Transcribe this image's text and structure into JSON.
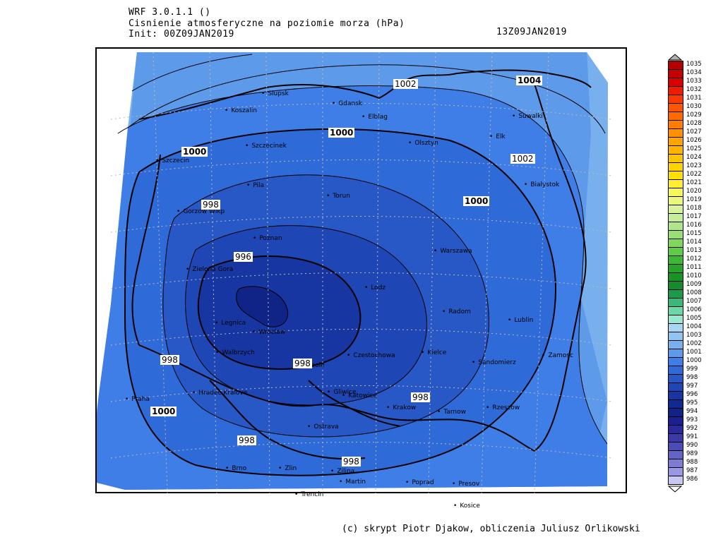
{
  "header": {
    "model": "WRF 3.0.1.1 ()",
    "field": "Cisnienie atmosferyczne na poziomie morza (hPa)",
    "init": "Init: 00Z09JAN2019",
    "valid": "13Z09JAN2019"
  },
  "footer": "(c) skrypt Piotr Djakow, obliczenia Juliusz Orlikowski",
  "legend": {
    "levels": [
      "1035",
      "1034",
      "1033",
      "1032",
      "1031",
      "1030",
      "1029",
      "1028",
      "1027",
      "1026",
      "1025",
      "1024",
      "1023",
      "1022",
      "1021",
      "1020",
      "1019",
      "1018",
      "1017",
      "1016",
      "1015",
      "1014",
      "1013",
      "1012",
      "1011",
      "1010",
      "1009",
      "1008",
      "1007",
      "1006",
      "1005",
      "1004",
      "1003",
      "1002",
      "1001",
      "1000",
      "999",
      "998",
      "997",
      "996",
      "995",
      "994",
      "993",
      "992",
      "991",
      "990",
      "989",
      "988",
      "987",
      "986"
    ],
    "colors": [
      "#b30000",
      "#c40000",
      "#d90000",
      "#ee1c00",
      "#f83a00",
      "#ff5500",
      "#ff6a00",
      "#ff7d00",
      "#ff9100",
      "#ffa400",
      "#ffb400",
      "#ffc400",
      "#ffd300",
      "#ffe000",
      "#ffee30",
      "#f6f85a",
      "#eaf77a",
      "#d9f39a",
      "#c6ed9a",
      "#b0e68a",
      "#98df74",
      "#7fd75c",
      "#60cc46",
      "#3db832",
      "#26a428",
      "#179424",
      "#178a30",
      "#1a9a4a",
      "#3ab87a",
      "#6cd8a8",
      "#9ae8d0",
      "#a6d6f4",
      "#90c4f2",
      "#78b0ee",
      "#5e9aea",
      "#3f7ee6",
      "#2e6ad8",
      "#2758c6",
      "#1e46b4",
      "#1736a2",
      "#0f2a92",
      "#102488",
      "#1c1f90",
      "#2a2a9c",
      "#3a3aa8",
      "#4c4cb6",
      "#6464c6",
      "#7c7cd6",
      "#9898e4",
      "#c8c8f2"
    ]
  },
  "cities": [
    {
      "name": "Slupsk"
    },
    {
      "name": "Gdansk"
    },
    {
      "name": "Koszalin"
    },
    {
      "name": "Elblag"
    },
    {
      "name": "Suwalki"
    },
    {
      "name": "Szczecinek"
    },
    {
      "name": "Olsztyn"
    },
    {
      "name": "Elk"
    },
    {
      "name": "Szczecin"
    },
    {
      "name": "Bialystok"
    },
    {
      "name": "Pila"
    },
    {
      "name": "Torun"
    },
    {
      "name": "Gorzow Wlkp"
    },
    {
      "name": "Poznan"
    },
    {
      "name": "Warszawa"
    },
    {
      "name": "Zielona Gora"
    },
    {
      "name": "Lodz"
    },
    {
      "name": "Radom"
    },
    {
      "name": "Lublin"
    },
    {
      "name": "Legnica"
    },
    {
      "name": "Wroclaw"
    },
    {
      "name": "Walbrzych"
    },
    {
      "name": "Opole"
    },
    {
      "name": "Czestochowa"
    },
    {
      "name": "Kielce"
    },
    {
      "name": "Sandomierz"
    },
    {
      "name": "Zamosc"
    },
    {
      "name": "Hradec Kralove"
    },
    {
      "name": "Gliwice"
    },
    {
      "name": "Katowice"
    },
    {
      "name": "Praha"
    },
    {
      "name": "Krakow"
    },
    {
      "name": "Tarnow"
    },
    {
      "name": "Rzeszow"
    },
    {
      "name": "Ostrava"
    },
    {
      "name": "Brno"
    },
    {
      "name": "Zlin"
    },
    {
      "name": "Zilina"
    },
    {
      "name": "Martin"
    },
    {
      "name": "Poprad"
    },
    {
      "name": "Presov"
    },
    {
      "name": "Trencin"
    },
    {
      "name": "Kosice"
    }
  ],
  "isobar_labels": [
    "1002",
    "1004",
    "1000",
    "1000",
    "1002",
    "998",
    "1000",
    "996",
    "998",
    "998",
    "998",
    "1000",
    "998",
    "998"
  ]
}
